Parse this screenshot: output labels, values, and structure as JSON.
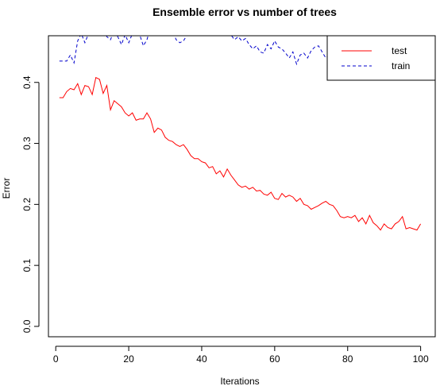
{
  "chart_data": {
    "type": "line",
    "title": "Ensemble error vs number of trees",
    "xlabel": "Iterations",
    "ylabel": "Error",
    "xlim": [
      -2,
      104
    ],
    "ylim": [
      -0.017,
      0.4765
    ],
    "xticks": [
      0,
      20,
      40,
      60,
      80,
      100
    ],
    "xtick_labels": [
      "0",
      "20",
      "40",
      "60",
      "80",
      "100"
    ],
    "yticks": [
      0.0,
      0.1,
      0.2,
      0.3,
      0.4
    ],
    "ytick_labels": [
      "0.0",
      "0.1",
      "0.2",
      "0.3",
      "0.4"
    ],
    "grid": false,
    "legend_position": "top-right",
    "series": [
      {
        "name": "test",
        "color": "#ff0000",
        "dash": "solid",
        "x": [
          1,
          2,
          3,
          4,
          5,
          6,
          7,
          8,
          9,
          10,
          11,
          12,
          13,
          14,
          15,
          16,
          17,
          18,
          19,
          20,
          21,
          22,
          23,
          24,
          25,
          26,
          27,
          28,
          29,
          30,
          31,
          32,
          33,
          34,
          35,
          36,
          37,
          38,
          39,
          40,
          41,
          42,
          43,
          44,
          45,
          46,
          47,
          48,
          49,
          50,
          51,
          52,
          53,
          54,
          55,
          56,
          57,
          58,
          59,
          60,
          61,
          62,
          63,
          64,
          65,
          66,
          67,
          68,
          69,
          70,
          71,
          72,
          73,
          74,
          75,
          76,
          77,
          78,
          79,
          80,
          81,
          82,
          83,
          84,
          85,
          86,
          87,
          88,
          89,
          90,
          91,
          92,
          93,
          94,
          95,
          96,
          97,
          98,
          99,
          100
        ],
        "values": [
          0.375,
          0.375,
          0.385,
          0.39,
          0.388,
          0.398,
          0.38,
          0.395,
          0.393,
          0.38,
          0.408,
          0.405,
          0.382,
          0.395,
          0.355,
          0.37,
          0.365,
          0.36,
          0.35,
          0.345,
          0.35,
          0.338,
          0.34,
          0.34,
          0.35,
          0.34,
          0.318,
          0.325,
          0.322,
          0.31,
          0.305,
          0.303,
          0.298,
          0.295,
          0.298,
          0.29,
          0.28,
          0.275,
          0.275,
          0.27,
          0.268,
          0.26,
          0.262,
          0.25,
          0.255,
          0.245,
          0.258,
          0.248,
          0.24,
          0.232,
          0.228,
          0.23,
          0.225,
          0.228,
          0.222,
          0.223,
          0.217,
          0.215,
          0.22,
          0.21,
          0.208,
          0.218,
          0.212,
          0.215,
          0.212,
          0.205,
          0.21,
          0.2,
          0.198,
          0.192,
          0.195,
          0.198,
          0.202,
          0.205,
          0.2,
          0.198,
          0.19,
          0.18,
          0.178,
          0.18,
          0.178,
          0.182,
          0.172,
          0.178,
          0.168,
          0.182,
          0.17,
          0.165,
          0.158,
          0.168,
          0.162,
          0.16,
          0.168,
          0.172,
          0.18,
          0.16,
          0.162,
          0.16,
          0.158,
          0.168
        ]
      },
      {
        "name": "train",
        "color": "#0000cc",
        "dash": "dashed",
        "x": [
          1,
          2,
          3,
          4,
          5,
          6,
          7,
          8,
          9,
          10,
          11,
          12,
          13,
          14,
          15,
          16,
          17,
          18,
          19,
          20,
          21,
          22,
          23,
          24,
          25,
          26,
          27,
          28,
          29,
          30,
          31,
          32,
          33,
          34,
          35,
          36,
          37,
          38,
          39,
          40,
          41,
          42,
          43,
          44,
          45,
          46,
          47,
          48,
          49,
          50,
          51,
          52,
          53,
          54,
          55,
          56,
          57,
          58,
          59,
          60,
          61,
          62,
          63,
          64,
          65,
          66,
          67,
          68,
          69,
          70,
          71,
          72,
          73,
          74,
          75,
          76,
          77,
          78,
          79,
          80
        ],
        "values": [
          0.435,
          0.435,
          0.435,
          0.445,
          0.432,
          0.468,
          0.48,
          0.465,
          0.48,
          0.49,
          0.495,
          0.5,
          0.49,
          0.475,
          0.47,
          0.485,
          0.475,
          0.462,
          0.478,
          0.465,
          0.48,
          0.495,
          0.478,
          0.46,
          0.47,
          0.49,
          0.5,
          0.485,
          0.495,
          0.5,
          0.49,
          0.485,
          0.47,
          0.465,
          0.468,
          0.478,
          0.49,
          0.495,
          0.5,
          0.495,
          0.5,
          0.49,
          0.495,
          0.5,
          0.49,
          0.485,
          0.48,
          0.478,
          0.47,
          0.475,
          0.468,
          0.472,
          0.462,
          0.455,
          0.46,
          0.45,
          0.448,
          0.462,
          0.455,
          0.468,
          0.458,
          0.455,
          0.448,
          0.44,
          0.45,
          0.43,
          0.445,
          0.448,
          0.44,
          0.452,
          0.458,
          0.46,
          0.45,
          0.44,
          0.445,
          0.45,
          0.455,
          0.445,
          0.452,
          0.458
        ]
      }
    ]
  }
}
